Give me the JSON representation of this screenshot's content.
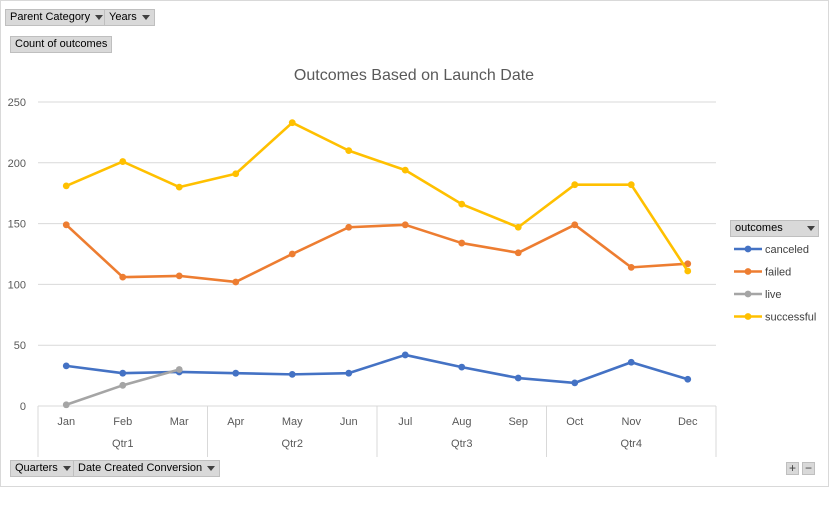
{
  "filters": {
    "parent_category": "Parent Category",
    "years": "Years",
    "values_field": "Count of outcomes",
    "quarters": "Quarters",
    "date_created": "Date Created Conversion",
    "legend_field": "outcomes"
  },
  "zoom": {
    "plus": "+",
    "minus": "−"
  },
  "chart_data": {
    "type": "line",
    "title": "Outcomes Based on Launch Date",
    "xlabel": "",
    "ylabel": "",
    "ylim": [
      0,
      250
    ],
    "yticks": [
      0,
      50,
      100,
      150,
      200,
      250
    ],
    "grid": true,
    "legend": "right",
    "categories": [
      "Jan",
      "Feb",
      "Mar",
      "Apr",
      "May",
      "Jun",
      "Jul",
      "Aug",
      "Sep",
      "Oct",
      "Nov",
      "Dec"
    ],
    "groups": [
      {
        "label": "Qtr1",
        "months": 3
      },
      {
        "label": "Qtr2",
        "months": 3
      },
      {
        "label": "Qtr3",
        "months": 3
      },
      {
        "label": "Qtr4",
        "months": 3
      }
    ],
    "series": [
      {
        "name": "canceled",
        "color": "#4472c4",
        "values": [
          33,
          27,
          28,
          27,
          26,
          27,
          42,
          32,
          23,
          19,
          36,
          22
        ]
      },
      {
        "name": "failed",
        "color": "#ed7d31",
        "values": [
          149,
          106,
          107,
          102,
          125,
          147,
          149,
          134,
          126,
          149,
          114,
          117
        ]
      },
      {
        "name": "live",
        "color": "#a5a5a5",
        "values": [
          1,
          17,
          30,
          null,
          null,
          null,
          null,
          null,
          null,
          null,
          null,
          null
        ]
      },
      {
        "name": "successful",
        "color": "#ffc000",
        "values": [
          181,
          201,
          180,
          191,
          233,
          210,
          194,
          166,
          147,
          182,
          182,
          111
        ]
      }
    ]
  }
}
